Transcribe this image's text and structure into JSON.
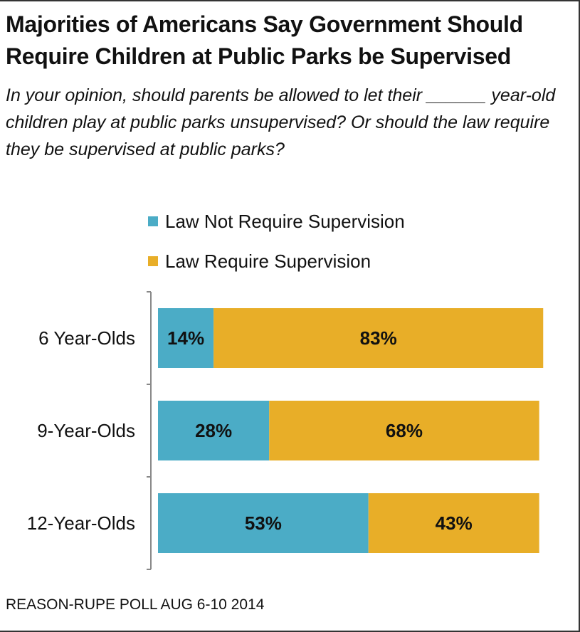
{
  "title": "Majorities of Americans Say Government Should Require Children at Public Parks be Supervised",
  "question": "In your opinion, should parents be allowed to let their ______ year-old children play at public parks unsupervised? Or should the law require they be supervised at public parks?",
  "source": "REASON-RUPE POLL AUG 6-10 2014",
  "colors": {
    "not_require": "#4bacc6",
    "require": "#e8ae28",
    "axis": "#888888"
  },
  "chart_data": {
    "type": "bar",
    "orientation": "horizontal",
    "stacked": true,
    "title": "Majorities of Americans Say Government Should Require Children at Public Parks be Supervised",
    "categories": [
      "6 Year-Olds",
      "9-Year-Olds",
      "12-Year-Olds"
    ],
    "series": [
      {
        "name": "Law Not Require Supervision",
        "values": [
          14,
          28,
          53
        ],
        "labels": [
          "14%",
          "28%",
          "53%"
        ],
        "color": "#4bacc6"
      },
      {
        "name": "Law Require Supervision",
        "values": [
          83,
          68,
          43
        ],
        "labels": [
          "83%",
          "68%",
          "43%"
        ],
        "color": "#e8ae28"
      }
    ],
    "xlim": [
      0,
      100
    ],
    "legend": "top",
    "grid": false
  }
}
